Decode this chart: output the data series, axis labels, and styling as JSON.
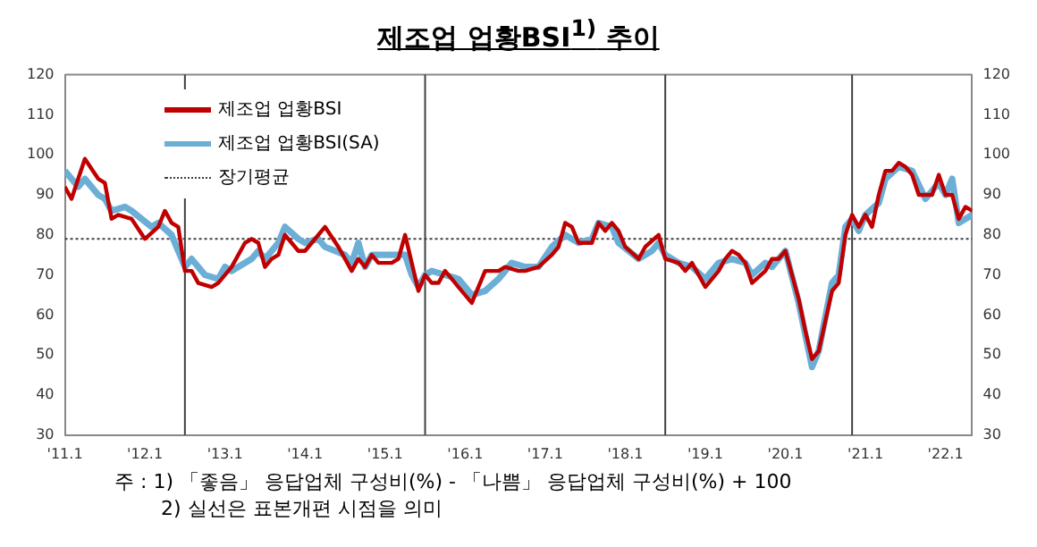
{
  "chart_data": {
    "type": "line",
    "title": "제조업 업황BSI$^{1)}$ 추이",
    "xlim": [
      "2011-01",
      "2022-05"
    ],
    "xticks": [
      {
        "value": "2011-01",
        "label": "'11.1"
      },
      {
        "value": "2012-01",
        "label": "'12.1"
      },
      {
        "value": "2013-01",
        "label": "'13.1"
      },
      {
        "value": "2014-01",
        "label": "'14.1"
      },
      {
        "value": "2015-01",
        "label": "'15.1"
      },
      {
        "value": "2016-01",
        "label": "'16.1"
      },
      {
        "value": "2017-01",
        "label": "'17.1"
      },
      {
        "value": "2018-01",
        "label": "'18.1"
      },
      {
        "value": "2019-01",
        "label": "'19.1"
      },
      {
        "value": "2020-01",
        "label": "'20.1"
      },
      {
        "value": "2021-01",
        "label": "'21.1"
      },
      {
        "value": "2022-01",
        "label": "'22.1"
      }
    ],
    "ylim": [
      30,
      120
    ],
    "yticks": [
      30,
      40,
      50,
      60,
      70,
      80,
      90,
      100,
      110,
      120
    ],
    "y2lim": [
      30,
      120
    ],
    "y2ticks": [
      30,
      40,
      50,
      60,
      70,
      80,
      90,
      100,
      110,
      120
    ],
    "grid": false,
    "legend": "top left",
    "marker": "none",
    "series": [
      {
        "name": "제조업 업황BSI",
        "color": "#c00000",
        "x": [
          "2011-01",
          "2011-02",
          "2011-04",
          "2011-06",
          "2011-07",
          "2011-08",
          "2011-09",
          "2011-11",
          "2012-01",
          "2012-03",
          "2012-04",
          "2012-05",
          "2012-06",
          "2012-07",
          "2012-08",
          "2012-09",
          "2012-11",
          "2012-12",
          "2013-02",
          "2013-04",
          "2013-05",
          "2013-06",
          "2013-07",
          "2013-08",
          "2013-09",
          "2013-10",
          "2013-12",
          "2014-01",
          "2014-02",
          "2014-04",
          "2014-06",
          "2014-07",
          "2014-08",
          "2014-09",
          "2014-10",
          "2014-11",
          "2014-12",
          "2015-02",
          "2015-03",
          "2015-04",
          "2015-06",
          "2015-07",
          "2015-08",
          "2015-09",
          "2015-10",
          "2015-12",
          "2016-02",
          "2016-04",
          "2016-06",
          "2016-07",
          "2016-09",
          "2016-10",
          "2016-12",
          "2017-02",
          "2017-03",
          "2017-04",
          "2017-05",
          "2017-06",
          "2017-08",
          "2017-09",
          "2017-10",
          "2017-11",
          "2017-12",
          "2018-01",
          "2018-03",
          "2018-04",
          "2018-06",
          "2018-07",
          "2018-09",
          "2018-10",
          "2018-11",
          "2019-01",
          "2019-03",
          "2019-04",
          "2019-05",
          "2019-06",
          "2019-07",
          "2019-08",
          "2019-10",
          "2019-11",
          "2019-12",
          "2020-01",
          "2020-03",
          "2020-04",
          "2020-05",
          "2020-06",
          "2020-08",
          "2020-09",
          "2020-10",
          "2020-11",
          "2020-12",
          "2021-01",
          "2021-02",
          "2021-03",
          "2021-04",
          "2021-05",
          "2021-06",
          "2021-07",
          "2021-08",
          "2021-09",
          "2021-11",
          "2021-12",
          "2022-01",
          "2022-02",
          "2022-03",
          "2022-04",
          "2022-05"
        ],
        "values": [
          92,
          89,
          99,
          94,
          93,
          84,
          85,
          84,
          79,
          82,
          86,
          83,
          82,
          71,
          71,
          68,
          67,
          68,
          72,
          78,
          79,
          78,
          72,
          74,
          75,
          80,
          76,
          76,
          78,
          82,
          77,
          74,
          71,
          74,
          72,
          75,
          73,
          73,
          74,
          80,
          66,
          70,
          68,
          68,
          71,
          67,
          63,
          71,
          71,
          72,
          71,
          71,
          72,
          75,
          77,
          83,
          82,
          78,
          78,
          83,
          81,
          83,
          81,
          77,
          74,
          77,
          80,
          74,
          73,
          71,
          73,
          67,
          71,
          74,
          76,
          75,
          73,
          68,
          71,
          74,
          74,
          76,
          64,
          56,
          49,
          51,
          66,
          68,
          80,
          85,
          82,
          85,
          82,
          90,
          96,
          96,
          98,
          97,
          95,
          90,
          90,
          95,
          90,
          90,
          84,
          87,
          86
        ]
      },
      {
        "name": "제조업 업황BSI(SA)",
        "color": "#6baed6",
        "x": [
          "2011-01",
          "2011-03",
          "2011-04",
          "2011-06",
          "2011-07",
          "2011-08",
          "2011-10",
          "2011-11",
          "2012-02",
          "2012-03",
          "2012-05",
          "2012-07",
          "2012-08",
          "2012-10",
          "2012-12",
          "2013-01",
          "2013-02",
          "2013-05",
          "2013-06",
          "2013-07",
          "2013-09",
          "2013-10",
          "2013-12",
          "2014-01",
          "2014-03",
          "2014-04",
          "2014-07",
          "2014-08",
          "2014-09",
          "2014-10",
          "2014-11",
          "2015-02",
          "2015-04",
          "2015-05",
          "2015-06",
          "2015-07",
          "2015-08",
          "2015-10",
          "2015-12",
          "2016-02",
          "2016-04",
          "2016-06",
          "2016-08",
          "2016-10",
          "2016-12",
          "2017-02",
          "2017-04",
          "2017-06",
          "2017-08",
          "2017-09",
          "2017-11",
          "2017-12",
          "2018-03",
          "2018-05",
          "2018-06",
          "2018-07",
          "2018-09",
          "2018-11",
          "2019-01",
          "2019-03",
          "2019-05",
          "2019-07",
          "2019-08",
          "2019-10",
          "2019-11",
          "2020-01",
          "2020-03",
          "2020-04",
          "2020-05",
          "2020-06",
          "2020-08",
          "2020-09",
          "2020-10",
          "2020-11",
          "2020-12",
          "2021-01",
          "2021-03",
          "2021-04",
          "2021-06",
          "2021-08",
          "2021-10",
          "2021-12",
          "2022-01",
          "2022-02",
          "2022-03",
          "2022-04",
          "2022-05"
        ],
        "values": [
          96,
          92,
          94,
          90,
          89,
          86,
          87,
          86,
          82,
          83,
          80,
          72,
          74,
          70,
          69,
          72,
          71,
          74,
          76,
          74,
          78,
          82,
          79,
          78,
          79,
          77,
          75,
          73,
          78,
          72,
          75,
          75,
          75,
          70,
          67,
          70,
          71,
          70,
          69,
          65,
          66,
          69,
          73,
          72,
          72,
          77,
          80,
          78,
          79,
          83,
          82,
          78,
          74,
          76,
          78,
          75,
          73,
          72,
          69,
          73,
          74,
          73,
          70,
          73,
          72,
          76,
          63,
          55,
          47,
          51,
          68,
          70,
          82,
          84,
          81,
          85,
          88,
          94,
          97,
          96,
          89,
          93,
          90,
          94,
          83,
          84,
          85
        ]
      },
      {
        "name": "장기평균",
        "color": "#404040",
        "line_style": "dotted",
        "x": [
          "2011-01",
          "2022-05"
        ],
        "values": [
          79,
          79
        ]
      }
    ],
    "ref_lines": [
      {
        "axis": "x",
        "value": "2012-07",
        "color": "#404040"
      },
      {
        "axis": "x",
        "value": "2015-07",
        "color": "#404040"
      },
      {
        "axis": "x",
        "value": "2018-07",
        "color": "#404040"
      },
      {
        "axis": "x",
        "value": "2020-11",
        "color": "#404040"
      }
    ],
    "annotations": [
      "주 : 1) 「좋음」 응답업체 구성비(%) - 「나쁨」 응답업체 구성비(%) + 100",
      "2) 실선은 표본개편 시점을 의미"
    ]
  }
}
